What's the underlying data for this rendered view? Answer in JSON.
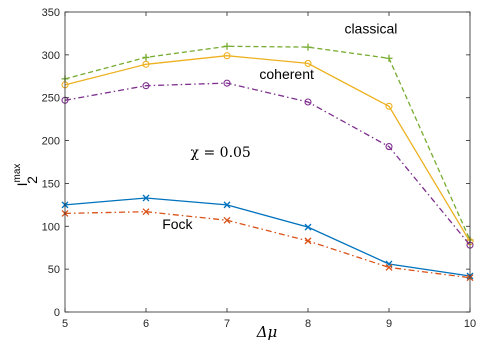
{
  "chart_data": {
    "type": "line",
    "title": "",
    "xlabel": "Δμ",
    "ylabel": {
      "base": "I",
      "sub": "2",
      "sup": "max"
    },
    "xlim": [
      5,
      10
    ],
    "ylim": [
      0,
      350
    ],
    "xticks": [
      "5",
      "6",
      "7",
      "8",
      "9",
      "10"
    ],
    "yticks": [
      "0",
      "50",
      "100",
      "150",
      "200",
      "250",
      "300",
      "350"
    ],
    "x": [
      5,
      6,
      7,
      8,
      9,
      10
    ],
    "grid": false,
    "series": [
      {
        "name": "classical",
        "color": "#77AC30",
        "dash": "dashed",
        "marker": "plus",
        "values": [
          272,
          297,
          310,
          309,
          296,
          84
        ]
      },
      {
        "name": "",
        "color": "#EDB120",
        "dash": "solid",
        "marker": "circle",
        "values": [
          265,
          289,
          299,
          290,
          240,
          82
        ]
      },
      {
        "name": "coherent",
        "color": "#7E2F8E",
        "dash": "dashdot",
        "marker": "circle",
        "values": [
          247,
          264,
          267,
          245,
          193,
          78
        ]
      },
      {
        "name": "Fock",
        "color": "#0072BD",
        "dash": "solid",
        "marker": "x",
        "values": [
          125,
          133,
          125,
          99,
          56,
          42
        ]
      },
      {
        "name": "",
        "color": "#D95319",
        "dash": "dashdot",
        "marker": "x",
        "values": [
          115,
          117,
          107,
          83,
          52,
          40
        ]
      }
    ],
    "annotations": [
      {
        "text": "classical",
        "x": 8.45,
        "y": 325
      },
      {
        "text": "coherent",
        "x": 7.4,
        "y": 272
      },
      {
        "text": "χ = 0.05",
        "x": 6.55,
        "y": 181
      },
      {
        "text": "Fock",
        "x": 6.2,
        "y": 97
      }
    ]
  }
}
